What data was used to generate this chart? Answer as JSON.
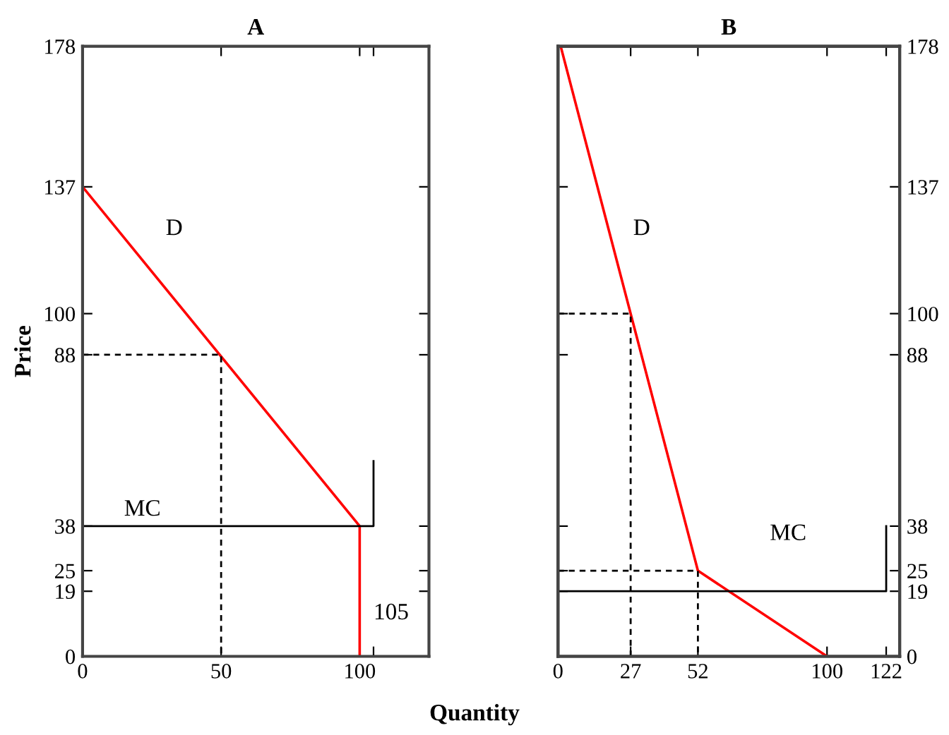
{
  "chart_data": [
    {
      "type": "line",
      "title": "A",
      "xlabel": "Quantity",
      "ylabel": "Price",
      "xlim": [
        0,
        125
      ],
      "xticks": [
        0,
        50,
        100,
        {
          "value": 105,
          "label": null
        }
      ],
      "ylim": [
        0,
        178
      ],
      "yticks": [
        0,
        19,
        25,
        38,
        88,
        100,
        137,
        178
      ],
      "series": [
        {
          "name": "D",
          "color": "#ff0000",
          "x": [
            0,
            100,
            100
          ],
          "values": [
            137,
            38,
            0
          ]
        },
        {
          "name": "MC",
          "color": "#000000",
          "x": [
            0,
            105,
            105
          ],
          "values": [
            38,
            38,
            57
          ]
        },
        {
          "color": "#000000",
          "line_style": "dashed",
          "x": [
            0,
            50,
            50
          ],
          "values": [
            88,
            88,
            0
          ]
        }
      ],
      "annotations": [
        "105"
      ]
    },
    {
      "type": "line",
      "title": "B",
      "xlim": [
        0,
        127
      ],
      "xticks": [
        0,
        27,
        52,
        100,
        122
      ],
      "y2lim": [
        0,
        178
      ],
      "y2ticks": [
        0,
        19,
        25,
        38,
        88,
        100,
        137,
        178
      ],
      "series": [
        {
          "name": "D",
          "color": "#ff0000",
          "axis": "y2",
          "x": [
            1,
            52,
            100
          ],
          "values": [
            178,
            25,
            0
          ]
        },
        {
          "name": "MC",
          "color": "#000000",
          "axis": "y2",
          "x": [
            0,
            122,
            122
          ],
          "values": [
            19,
            19,
            38
          ]
        },
        {
          "color": "#000000",
          "axis": "y2",
          "line_style": "dashed",
          "x": [
            0,
            27,
            27
          ],
          "values": [
            100,
            100,
            0
          ]
        },
        {
          "color": "#000000",
          "axis": "y2",
          "line_style": "dashed",
          "x": [
            0,
            52,
            52
          ],
          "values": [
            25,
            25,
            0
          ]
        }
      ]
    }
  ]
}
